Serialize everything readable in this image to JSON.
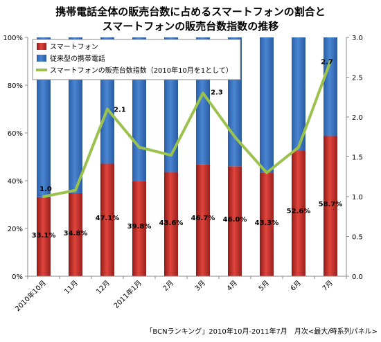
{
  "chart_data": {
    "type": "bar",
    "title_lines": [
      "携帯電話全体の販売台数に占めるスマートフォンの割合と",
      "スマートフォンの販売台数指数の推移"
    ],
    "categories": [
      "2010年10月",
      "11月",
      "12月",
      "2011年1月",
      "2月",
      "3月",
      "4月",
      "5月",
      "6月",
      "7月"
    ],
    "series": [
      {
        "name": "スマートフォン",
        "kind": "stacked_bar",
        "values": [
          33.1,
          34.8,
          47.1,
          39.8,
          43.6,
          46.7,
          46.0,
          43.3,
          52.6,
          58.7
        ],
        "labels": [
          "33.1%",
          "34.8%",
          "47.1%",
          "39.8%",
          "43.6%",
          "46.7%",
          "46.0%",
          "43.3%",
          "52.6%",
          "58.7%"
        ],
        "color": "#c0322c"
      },
      {
        "name": "従来型の携帯電話",
        "kind": "stacked_bar",
        "values": [
          66.9,
          65.2,
          52.9,
          60.2,
          56.4,
          53.3,
          54.0,
          56.7,
          47.4,
          41.3
        ],
        "color": "#3a73be"
      },
      {
        "name": "スマートフォンの販売台数指数（2010年10月を1として）",
        "kind": "line",
        "axis": "right",
        "values": [
          1.0,
          1.08,
          2.1,
          1.62,
          1.52,
          2.3,
          1.75,
          1.3,
          1.62,
          2.7
        ],
        "color": "#9ac24c",
        "labels": [
          "1.0",
          "",
          "2.1",
          "",
          "",
          "2.3",
          "",
          "",
          "",
          "2.7"
        ]
      }
    ],
    "y_left": {
      "range": [
        0,
        100
      ],
      "ticks": [
        "0%",
        "20%",
        "40%",
        "60%",
        "80%",
        "100%"
      ]
    },
    "y_right": {
      "range": [
        0,
        3.0
      ],
      "ticks": [
        "0.0",
        "0.5",
        "1.0",
        "1.5",
        "2.0",
        "2.5",
        "3.0"
      ]
    },
    "grid": false,
    "legend": "top-left",
    "source": "「BCNランキング」2010年10月-2011年7月　月次<最大/時系列パネル>"
  }
}
